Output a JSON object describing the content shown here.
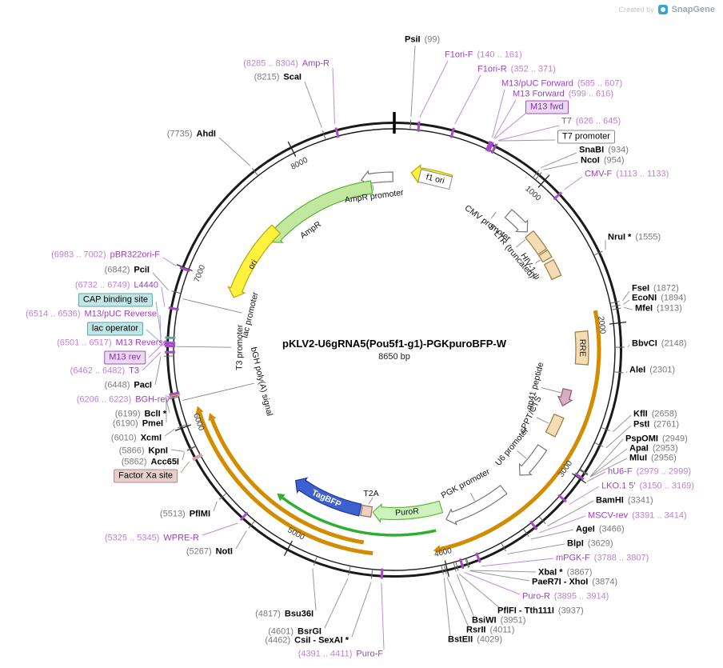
{
  "watermark": {
    "created_by": "Created by",
    "brand": "SnapGene"
  },
  "plasmid": {
    "title": "pKLV2-U6gRNA5(Pou5f1-g1)-PGKpuroBFP-W",
    "length": "8650 bp"
  },
  "ticks": [
    "1000",
    "2000",
    "3000",
    "4000",
    "5000",
    "6000",
    "7000",
    "8000"
  ],
  "features": [
    {
      "id": "f1ori",
      "label": "f1 ori"
    },
    {
      "id": "ampr_prom",
      "label": "AmpR promoter"
    },
    {
      "id": "ampr",
      "label": "AmpR"
    },
    {
      "id": "ori",
      "label": "ori"
    },
    {
      "id": "cmv",
      "label": "CMV promoter"
    },
    {
      "id": "ltr5",
      "label": "5' LTR (truncated)"
    },
    {
      "id": "psi",
      "label": "HIV-1 ψ"
    },
    {
      "id": "rre",
      "label": "RRE"
    },
    {
      "id": "gp41",
      "label": "gp41 peptide"
    },
    {
      "id": "cppt",
      "label": "cPPT/CTS"
    },
    {
      "id": "u6",
      "label": "U6 promoter"
    },
    {
      "id": "pgk",
      "label": "PGK promoter"
    },
    {
      "id": "puror",
      "label": "PuroR"
    },
    {
      "id": "t2a",
      "label": "T2A"
    },
    {
      "id": "tagbfp",
      "label": "TagBFP"
    },
    {
      "id": "bgh",
      "label": "bGH poly(A) signal"
    },
    {
      "id": "t3prom",
      "label": "T3 promoter"
    },
    {
      "id": "lacprom",
      "label": "lac promoter"
    }
  ],
  "site_labels": [
    {
      "id": "psiI",
      "name": "PsiI",
      "pos": "(99)",
      "kind": "enzyme"
    },
    {
      "id": "f1oriF",
      "name": "F1ori-F",
      "pos": "(140 .. 161)",
      "kind": "primer"
    },
    {
      "id": "f1oriR",
      "name": "F1ori-R",
      "pos": "(352 .. 371)",
      "kind": "primer"
    },
    {
      "id": "m13pucFwd",
      "name": "M13/pUC Forward",
      "pos": "(585 .. 607)",
      "kind": "primer"
    },
    {
      "id": "m13Fwd",
      "name": "M13 Forward",
      "pos": "(599 .. 616)",
      "kind": "primer"
    },
    {
      "id": "m13fwdBox",
      "name": "M13 fwd",
      "pos": "",
      "kind": "box_primer"
    },
    {
      "id": "t7",
      "name": "T7",
      "pos": "(626 .. 645)",
      "kind": "primer"
    },
    {
      "id": "t7promBox",
      "name": "T7 promoter",
      "pos": "",
      "kind": "box_promoter"
    },
    {
      "id": "snaBI",
      "name": "SnaBI",
      "pos": "(934)",
      "kind": "enzyme"
    },
    {
      "id": "ncoI",
      "name": "NcoI",
      "pos": "(954)",
      "kind": "enzyme"
    },
    {
      "id": "cmvF",
      "name": "CMV-F",
      "pos": "(1113 .. 1133)",
      "kind": "primer"
    },
    {
      "id": "nruI",
      "name": "NruI *",
      "pos": "(1555)",
      "kind": "enzyme"
    },
    {
      "id": "fseI",
      "name": "FseI",
      "pos": "(1872)",
      "kind": "enzyme"
    },
    {
      "id": "ecoNI",
      "name": "EcoNI",
      "pos": "(1894)",
      "kind": "enzyme"
    },
    {
      "id": "mfeI",
      "name": "MfeI",
      "pos": "(1913)",
      "kind": "enzyme"
    },
    {
      "id": "bbvCI",
      "name": "BbvCI",
      "pos": "(2148)",
      "kind": "enzyme"
    },
    {
      "id": "aleI",
      "name": "AleI",
      "pos": "(2301)",
      "kind": "enzyme"
    },
    {
      "id": "kflI",
      "name": "KflI",
      "pos": "(2658)",
      "kind": "enzyme"
    },
    {
      "id": "pstI",
      "name": "PstI",
      "pos": "(2761)",
      "kind": "enzyme"
    },
    {
      "id": "pspOMI",
      "name": "PspOMI",
      "pos": "(2949)",
      "kind": "enzyme"
    },
    {
      "id": "apaI",
      "name": "ApaI",
      "pos": "(2953)",
      "kind": "enzyme"
    },
    {
      "id": "mluI",
      "name": "MluI",
      "pos": "(2956)",
      "kind": "enzyme"
    },
    {
      "id": "hU6F",
      "name": "hU6-F",
      "pos": "(2979 .. 2999)",
      "kind": "primer"
    },
    {
      "id": "lko15",
      "name": "LKO.1 5'",
      "pos": "(3150 .. 3169)",
      "kind": "primer"
    },
    {
      "id": "bamHI",
      "name": "BamHI",
      "pos": "(3341)",
      "kind": "enzyme"
    },
    {
      "id": "mscvRev",
      "name": "MSCV-rev",
      "pos": "(3391 .. 3414)",
      "kind": "primer"
    },
    {
      "id": "ageI",
      "name": "AgeI",
      "pos": "(3466)",
      "kind": "enzyme"
    },
    {
      "id": "blpI",
      "name": "BlpI",
      "pos": "(3629)",
      "kind": "enzyme"
    },
    {
      "id": "mpgkF",
      "name": "mPGK-F",
      "pos": "(3788 .. 3807)",
      "kind": "primer"
    },
    {
      "id": "xbaI",
      "name": "XbaI *",
      "pos": "(3867)",
      "kind": "enzyme"
    },
    {
      "id": "paeR7I",
      "name": "PaeR7I - XhoI",
      "pos": "(3874)",
      "kind": "enzyme"
    },
    {
      "id": "puroRp",
      "name": "Puro-R",
      "pos": "(3895 .. 3914)",
      "kind": "primer"
    },
    {
      "id": "pflFI",
      "name": "PflFI - Tth111I",
      "pos": "(3937)",
      "kind": "enzyme"
    },
    {
      "id": "bsiWI",
      "name": "BsiWI",
      "pos": "(3951)",
      "kind": "enzyme"
    },
    {
      "id": "rsrII",
      "name": "RsrII",
      "pos": "(4011)",
      "kind": "enzyme"
    },
    {
      "id": "bstEII",
      "name": "BstEII",
      "pos": "(4029)",
      "kind": "enzyme"
    },
    {
      "id": "bsu36I",
      "name": "Bsu36I",
      "pos": "(4817)",
      "kind": "enzyme"
    },
    {
      "id": "bsrGI",
      "name": "BsrGI",
      "pos": "(4601)",
      "kind": "enzyme"
    },
    {
      "id": "csiI",
      "name": "CsiI - SexAI *",
      "pos": "(4462)",
      "kind": "enzyme"
    },
    {
      "id": "puroF",
      "name": "Puro-F",
      "pos": "(4391 .. 4411)",
      "kind": "primer"
    },
    {
      "id": "notI",
      "name": "NotI",
      "pos": "(5267)",
      "kind": "enzyme"
    },
    {
      "id": "wpreR",
      "name": "WPRE-R",
      "pos": "(5325 .. 5345)",
      "kind": "primer"
    },
    {
      "id": "pflMI",
      "name": "PflMI",
      "pos": "(5513)",
      "kind": "enzyme"
    },
    {
      "id": "factorXa",
      "name": "Factor Xa site",
      "pos": "",
      "kind": "box_pink"
    },
    {
      "id": "acc65I",
      "name": "Acc65I",
      "pos": "(5862)",
      "kind": "enzyme"
    },
    {
      "id": "kpnI",
      "name": "KpnI",
      "pos": "(5866)",
      "kind": "enzyme"
    },
    {
      "id": "xcmI",
      "name": "XcmI",
      "pos": "(6010)",
      "kind": "enzyme"
    },
    {
      "id": "pmeI",
      "name": "PmeI",
      "pos": "(6190)",
      "kind": "enzyme"
    },
    {
      "id": "bclI",
      "name": "BclI *",
      "pos": "(6199)",
      "kind": "enzyme"
    },
    {
      "id": "bghRev",
      "name": "BGH-rev",
      "pos": "(6206 .. 6223)",
      "kind": "primer"
    },
    {
      "id": "pacI",
      "name": "PacI",
      "pos": "(6448)",
      "kind": "enzyme"
    },
    {
      "id": "t3",
      "name": "T3",
      "pos": "(6462 .. 6482)",
      "kind": "primer"
    },
    {
      "id": "m13revBox",
      "name": "M13 rev",
      "pos": "",
      "kind": "box_primer"
    },
    {
      "id": "m13Reverse",
      "name": "M13 Reverse",
      "pos": "(6501 .. 6517)",
      "kind": "primer"
    },
    {
      "id": "lacOpBox",
      "name": "lac operator",
      "pos": "",
      "kind": "box_teal"
    },
    {
      "id": "m13pucRev",
      "name": "M13/pUC Reverse",
      "pos": "(6514 .. 6536)",
      "kind": "primer"
    },
    {
      "id": "capBox",
      "name": "CAP binding site",
      "pos": "",
      "kind": "box_teal"
    },
    {
      "id": "l4440",
      "name": "L4440",
      "pos": "(6732 .. 6749)",
      "kind": "primer"
    },
    {
      "id": "pciI",
      "name": "PciI",
      "pos": "(6842)",
      "kind": "enzyme"
    },
    {
      "id": "pbr322",
      "name": "pBR322ori-F",
      "pos": "(6983 .. 7002)",
      "kind": "primer"
    },
    {
      "id": "ahdI",
      "name": "AhdI",
      "pos": "(7735)",
      "kind": "enzyme"
    },
    {
      "id": "scaI",
      "name": "ScaI",
      "pos": "(8215)",
      "kind": "enzyme"
    },
    {
      "id": "amprP",
      "name": "Amp-R",
      "pos": "(8285 .. 8304)",
      "kind": "primer"
    }
  ],
  "colors": {
    "backbone": "#1a1a1a",
    "orange_arc": "#d28c00",
    "green_arc": "#2faf2f",
    "yellow_feature": "#fff23f",
    "green_feature": "#c2e8a0",
    "pale_green_feature": "#ccf2be",
    "blue_feature": "#3d5fd0",
    "tan_feature": "#f4dcb4",
    "primer_purple": "#a03fc0"
  }
}
